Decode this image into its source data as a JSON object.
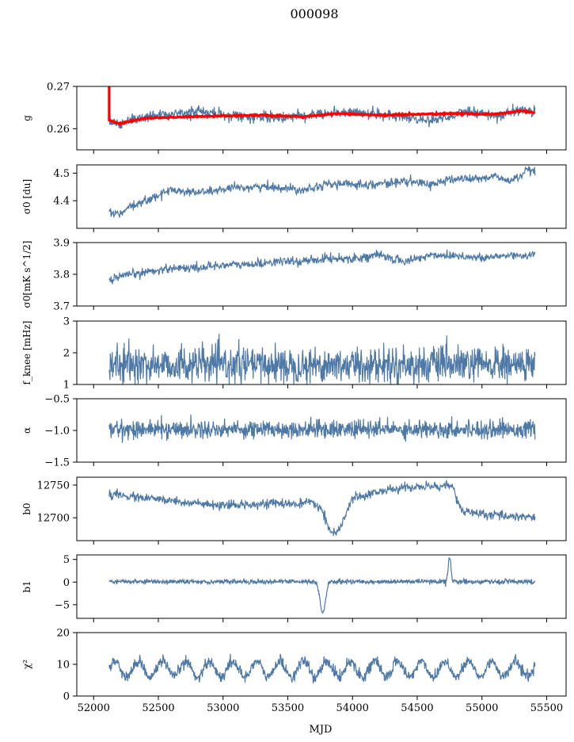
{
  "figure": {
    "title": "000098",
    "xlabel": "MJD"
  },
  "colors": {
    "series": "#4e79a7",
    "model": "#ff0000",
    "frame": "#000000"
  },
  "chart_data": [
    {
      "type": "line",
      "ylabel": "g",
      "ylim": [
        0.255,
        0.27
      ],
      "yticks": [
        0.26,
        0.27
      ],
      "yticklabels": [
        "0.26",
        "0.27"
      ],
      "xlim": [
        51870,
        55650
      ],
      "x_range": [
        52120,
        55410
      ],
      "series": [
        {
          "role": "data",
          "x": [
            52120,
            52200,
            52300,
            52500,
            52800,
            53100,
            53400,
            53700,
            54000,
            54300,
            54600,
            54900,
            55100,
            55300,
            55410
          ],
          "values": [
            0.2615,
            0.2605,
            0.2625,
            0.263,
            0.264,
            0.263,
            0.2625,
            0.2635,
            0.264,
            0.263,
            0.262,
            0.264,
            0.263,
            0.2645,
            0.264
          ]
        },
        {
          "role": "model",
          "x": [
            52120,
            52200,
            52400,
            52700,
            53000,
            53300,
            53600,
            53900,
            54200,
            54500,
            54800,
            55100,
            55300,
            55410
          ],
          "values": [
            0.262,
            0.2612,
            0.2625,
            0.2628,
            0.263,
            0.2632,
            0.2628,
            0.2636,
            0.2632,
            0.2634,
            0.2636,
            0.2634,
            0.2642,
            0.2638
          ]
        }
      ]
    },
    {
      "type": "line",
      "ylabel": "σ0 [du]",
      "ylim": [
        4.3,
        4.53
      ],
      "yticks": [
        4.4,
        4.5
      ],
      "yticklabels": [
        "4.4",
        "4.5"
      ],
      "xlim": [
        51870,
        55650
      ],
      "series": [
        {
          "x": [
            52120,
            52200,
            52300,
            52450,
            52600,
            52800,
            53000,
            53200,
            53400,
            53600,
            53800,
            54000,
            54200,
            54400,
            54600,
            54800,
            55000,
            55100,
            55200,
            55300,
            55350,
            55410
          ],
          "values": [
            4.36,
            4.35,
            4.38,
            4.41,
            4.44,
            4.43,
            4.44,
            4.45,
            4.45,
            4.44,
            4.46,
            4.46,
            4.46,
            4.47,
            4.46,
            4.48,
            4.48,
            4.49,
            4.47,
            4.49,
            4.51,
            4.5
          ]
        }
      ]
    },
    {
      "type": "line",
      "ylabel": "σ0[mK s^1/2]",
      "ylim": [
        3.7,
        3.9
      ],
      "yticks": [
        3.7,
        3.8,
        3.9
      ],
      "yticklabels": [
        "3.7",
        "3.8",
        "3.9"
      ],
      "xlim": [
        51870,
        55650
      ],
      "series": [
        {
          "x": [
            52120,
            52200,
            52300,
            52450,
            52600,
            52800,
            53000,
            53200,
            53400,
            53600,
            53800,
            54000,
            54200,
            54400,
            54600,
            54800,
            55000,
            55200,
            55410
          ],
          "values": [
            3.78,
            3.79,
            3.8,
            3.81,
            3.82,
            3.82,
            3.83,
            3.83,
            3.84,
            3.84,
            3.85,
            3.85,
            3.86,
            3.84,
            3.86,
            3.86,
            3.85,
            3.86,
            3.86
          ]
        }
      ]
    },
    {
      "type": "line",
      "ylabel": "f_knee [mHz]",
      "ylim": [
        1,
        3
      ],
      "yticks": [
        1,
        2,
        3
      ],
      "yticklabels": [
        "1",
        "2",
        "3"
      ],
      "xlim": [
        51870,
        55650
      ],
      "series": [
        {
          "x_range": [
            52120,
            55410
          ],
          "mean": 1.62,
          "noise": 0.28,
          "extremes": [
            1.0,
            2.6
          ]
        }
      ]
    },
    {
      "type": "line",
      "ylabel": "α",
      "ylim": [
        -1.5,
        -0.5
      ],
      "yticks": [
        -1.5,
        -1.0,
        -0.5
      ],
      "yticklabels": [
        "−1.5",
        "−1.0",
        "−0.5"
      ],
      "xlim": [
        51870,
        55650
      ],
      "series": [
        {
          "x_range": [
            52120,
            55410
          ],
          "mean": -0.98,
          "noise": 0.07,
          "extremes": [
            -1.33,
            -0.75
          ]
        }
      ]
    },
    {
      "type": "line",
      "ylabel": "b0",
      "ylim": [
        12665,
        12762
      ],
      "yticks": [
        12700,
        12750
      ],
      "yticklabels": [
        "12700",
        "12750"
      ],
      "xlim": [
        51870,
        55650
      ],
      "series": [
        {
          "x": [
            52120,
            52200,
            52400,
            52600,
            52800,
            52900,
            53000,
            53100,
            53200,
            53300,
            53400,
            53500,
            53600,
            53700,
            53750,
            53780,
            53800,
            53830,
            53870,
            53920,
            54000,
            54200,
            54400,
            54600,
            54750,
            54770,
            54800,
            54850,
            55000,
            55200,
            55410
          ],
          "values": [
            12736,
            12734,
            12730,
            12726,
            12722,
            12719,
            12718,
            12719,
            12721,
            12722,
            12722,
            12721,
            12721,
            12723,
            12715,
            12705,
            12692,
            12680,
            12674,
            12690,
            12730,
            12740,
            12746,
            12748,
            12749,
            12750,
            12730,
            12710,
            12705,
            12703,
            12701
          ]
        }
      ]
    },
    {
      "type": "line",
      "ylabel": "b1",
      "ylim": [
        -8,
        6
      ],
      "yticks": [
        -5,
        0,
        5
      ],
      "yticklabels": [
        "−5",
        "0",
        "5"
      ],
      "xlim": [
        51870,
        55650
      ],
      "series": [
        {
          "x_range": [
            52120,
            55410
          ],
          "mean": 0.1,
          "noise": 0.25,
          "events": [
            {
              "x": 53770,
              "value": -6.8,
              "width": 30
            },
            {
              "x": 54750,
              "value": 5.5,
              "width": 15
            }
          ]
        }
      ]
    },
    {
      "type": "line",
      "ylabel": "χ²",
      "ylim": [
        0,
        20
      ],
      "yticks": [
        0,
        10,
        20
      ],
      "yticklabels": [
        "0",
        "10",
        "20"
      ],
      "xlim": [
        51870,
        55650
      ],
      "xticks": [
        52000,
        52500,
        53000,
        53500,
        54000,
        54500,
        55000,
        55500
      ],
      "xticklabels": [
        "52000",
        "52500",
        "53000",
        "53500",
        "54000",
        "54500",
        "55000",
        "55500"
      ],
      "series": [
        {
          "x_range": [
            52120,
            55410
          ],
          "mean": 8.5,
          "amplitude": 2.5,
          "period_days": 182,
          "noise": 0.9
        }
      ]
    }
  ]
}
